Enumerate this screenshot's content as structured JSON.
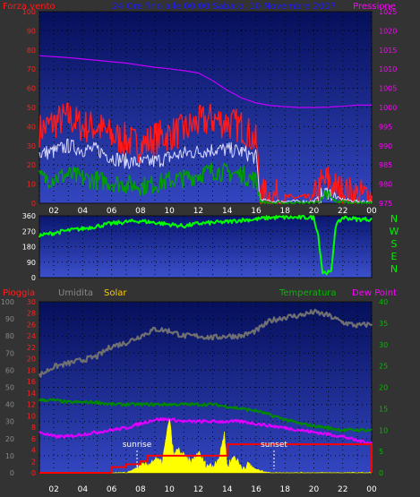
{
  "header": {
    "left_label": "Forza vento",
    "title": "24 Ore fino alle 00:00 Sabato, 10 Novembre 2007",
    "right_label": "Pressione"
  },
  "wind_compass": [
    "N",
    "W",
    "S",
    "E",
    "N"
  ],
  "bottom_header": {
    "pioggia": "Pioggia",
    "umidita": "Umidita",
    "solar": "Solar",
    "temperatura": "Temperatura",
    "dewpoint": "Dew Point"
  },
  "annotations": {
    "sunrise": "sunrise",
    "sunset": "sunset"
  },
  "x_ticks": [
    "02",
    "04",
    "06",
    "08",
    "10",
    "12",
    "14",
    "16",
    "18",
    "20",
    "22",
    "00"
  ],
  "colors": {
    "bg": "#333333",
    "plot_top": "#05105a",
    "plot_bottom": "#3a4cc8",
    "gust": "#ff1a1a",
    "avg": "#00a000",
    "pressure": "#c000ff",
    "direction": "#00ff00",
    "humidity": "#707070",
    "temperature": "#008800",
    "dewpoint": "#dd00ff",
    "solar": "#ffff00",
    "rain": "#ff0000"
  },
  "chart_data": [
    {
      "type": "line",
      "name": "wind-pressure",
      "xlim": [
        1,
        24
      ],
      "ylim_left": [
        0,
        100
      ],
      "ylim_right": [
        975,
        1025
      ],
      "yticks_left": [
        0,
        10,
        20,
        30,
        40,
        50,
        60,
        70,
        80,
        90,
        100
      ],
      "yticks_right": [
        975,
        980,
        985,
        990,
        995,
        1000,
        1005,
        1010,
        1015,
        1020,
        1025
      ],
      "series": [
        {
          "name": "Forza vento",
          "axis": "left",
          "role": "gust",
          "x": [
            1,
            2,
            3,
            4,
            5,
            6,
            7,
            8,
            9,
            10,
            11,
            12,
            13,
            14,
            15,
            16,
            16.3,
            17,
            18,
            19,
            20,
            20.5,
            21,
            21.5,
            22,
            23,
            24
          ],
          "y": [
            38,
            42,
            45,
            40,
            40,
            35,
            33,
            30,
            34,
            36,
            38,
            42,
            44,
            42,
            40,
            32,
            4,
            4,
            3,
            3,
            3,
            10,
            12,
            8,
            6,
            4,
            4
          ]
        },
        {
          "name": "Forza vento",
          "axis": "left",
          "role": "mean",
          "x": [
            1,
            2,
            3,
            4,
            5,
            6,
            7,
            8,
            9,
            10,
            11,
            12,
            13,
            14,
            15,
            16,
            16.3,
            17,
            18,
            19,
            20,
            20.5,
            21,
            21.5,
            22,
            23,
            24
          ],
          "y": [
            26,
            27,
            30,
            28,
            28,
            24,
            22,
            21,
            22,
            24,
            26,
            27,
            28,
            28,
            27,
            24,
            2,
            1,
            1,
            1,
            1,
            4,
            6,
            3,
            2,
            1,
            1
          ]
        },
        {
          "name": "Forza vento",
          "axis": "left",
          "role": "avg",
          "x": [
            1,
            2,
            3,
            4,
            5,
            6,
            7,
            8,
            9,
            10,
            11,
            12,
            13,
            14,
            15,
            16,
            16.3,
            17,
            18,
            19,
            20,
            20.5,
            21,
            21.5,
            22,
            23,
            24
          ],
          "y": [
            13,
            13,
            15,
            13,
            12,
            11,
            10,
            9,
            10,
            12,
            13,
            15,
            17,
            16,
            15,
            12,
            1,
            0,
            0,
            0,
            0,
            2,
            4,
            1,
            1,
            0,
            0
          ]
        },
        {
          "name": "Pressione",
          "axis": "right",
          "x": [
            1,
            3,
            5,
            7,
            8,
            9,
            10,
            11,
            12,
            13,
            14,
            15,
            16,
            17,
            18,
            19,
            20,
            21,
            22,
            23,
            24
          ],
          "y": [
            1013.5,
            1013,
            1012.3,
            1011.6,
            1011,
            1010.5,
            1010.1,
            1009.6,
            1009,
            1007,
            1004.5,
            1002.5,
            1001.2,
            1000.5,
            1000.2,
            1000,
            1000,
            1000.1,
            1000.3,
            1000.6,
            1000.6
          ]
        }
      ]
    },
    {
      "type": "line",
      "name": "wind-direction",
      "xlim": [
        1,
        24
      ],
      "ylim": [
        0,
        360
      ],
      "yticks": [
        0,
        90,
        180,
        270,
        360
      ],
      "series": [
        {
          "name": "Direzione vento",
          "x": [
            1,
            2,
            3,
            4,
            5,
            6,
            7,
            8,
            9,
            10,
            11,
            12,
            13,
            14,
            15,
            16,
            17,
            18,
            19,
            20,
            20.3,
            20.6,
            21.2,
            21.5,
            22,
            23,
            24
          ],
          "y": [
            245,
            260,
            275,
            285,
            300,
            315,
            325,
            330,
            320,
            310,
            300,
            315,
            320,
            325,
            335,
            340,
            350,
            350,
            350,
            350,
            250,
            30,
            30,
            300,
            350,
            340,
            340
          ]
        }
      ]
    },
    {
      "type": "line",
      "name": "rain-humidity-solar-temperature",
      "xlim": [
        1,
        24
      ],
      "ylim_humidity": [
        0,
        100
      ],
      "ylim_rain": [
        0,
        30
      ],
      "ylim_temp": [
        0,
        40
      ],
      "yticks_humidity": [
        0,
        10,
        20,
        30,
        40,
        50,
        60,
        70,
        80,
        90,
        100
      ],
      "yticks_rain": [
        0,
        2,
        4,
        6,
        8,
        10,
        12,
        14,
        16,
        18,
        20,
        22,
        24,
        26,
        28,
        30
      ],
      "yticks_temp": [
        0,
        5,
        10,
        15,
        20,
        25,
        30,
        35,
        40
      ],
      "series": [
        {
          "name": "Umidita",
          "axis": "humidity",
          "x": [
            1,
            2,
            3,
            4,
            5,
            6,
            7,
            8,
            9,
            10,
            11,
            12,
            13,
            14,
            15,
            16,
            17,
            18,
            19,
            20,
            21,
            22,
            23,
            24
          ],
          "y": [
            57,
            62,
            64,
            66,
            68,
            74,
            76,
            80,
            84,
            83,
            80,
            80,
            79,
            80,
            80,
            83,
            89,
            91,
            92,
            94,
            92,
            88,
            86,
            87
          ]
        },
        {
          "name": "Temperatura",
          "axis": "temp",
          "x": [
            1,
            2,
            3,
            4,
            5,
            6,
            7,
            8,
            9,
            10,
            11,
            12,
            13,
            14,
            15,
            16,
            17,
            18,
            19,
            20,
            21,
            22,
            23,
            24
          ],
          "y": [
            17,
            17,
            16.5,
            16.5,
            16.5,
            16,
            16,
            16,
            16,
            16,
            16,
            16,
            16,
            15.5,
            15,
            14.5,
            13.5,
            12.5,
            11.5,
            11,
            10.5,
            10,
            10,
            10
          ]
        },
        {
          "name": "Dew Point",
          "axis": "temp",
          "x": [
            1,
            2,
            3,
            4,
            5,
            6,
            7,
            8,
            9,
            10,
            11,
            12,
            13,
            14,
            15,
            16,
            17,
            18,
            19,
            20,
            21,
            22,
            23,
            24
          ],
          "y": [
            9.5,
            8.5,
            8.5,
            9,
            9.5,
            10,
            10.5,
            11.5,
            12.5,
            12.5,
            12,
            12,
            12,
            12,
            12,
            11.5,
            11,
            10.5,
            10,
            9.5,
            9,
            8.5,
            7.5,
            7
          ]
        },
        {
          "name": "Solar",
          "axis": "humidity",
          "role": "area",
          "x": [
            1,
            6,
            7,
            7.5,
            8,
            8.5,
            9,
            9.5,
            10,
            10.3,
            10.6,
            11,
            11.5,
            12,
            12.5,
            13,
            13.5,
            13.8,
            14,
            14.5,
            15,
            15.5,
            16,
            16.5,
            17,
            24
          ],
          "y": [
            0,
            0,
            0,
            2,
            4,
            5,
            8,
            6,
            32,
            10,
            14,
            10,
            6,
            12,
            5,
            4,
            10,
            24,
            4,
            10,
            3,
            5,
            2,
            1,
            0,
            0
          ]
        },
        {
          "name": "Pioggia",
          "axis": "rain",
          "role": "step",
          "x": [
            1,
            5.8,
            6,
            6.8,
            7,
            8,
            8.5,
            13.5,
            14,
            22,
            24
          ],
          "y": [
            0,
            0,
            1,
            1,
            1.5,
            2,
            3,
            3,
            5,
            5,
            5
          ]
        }
      ]
    }
  ]
}
